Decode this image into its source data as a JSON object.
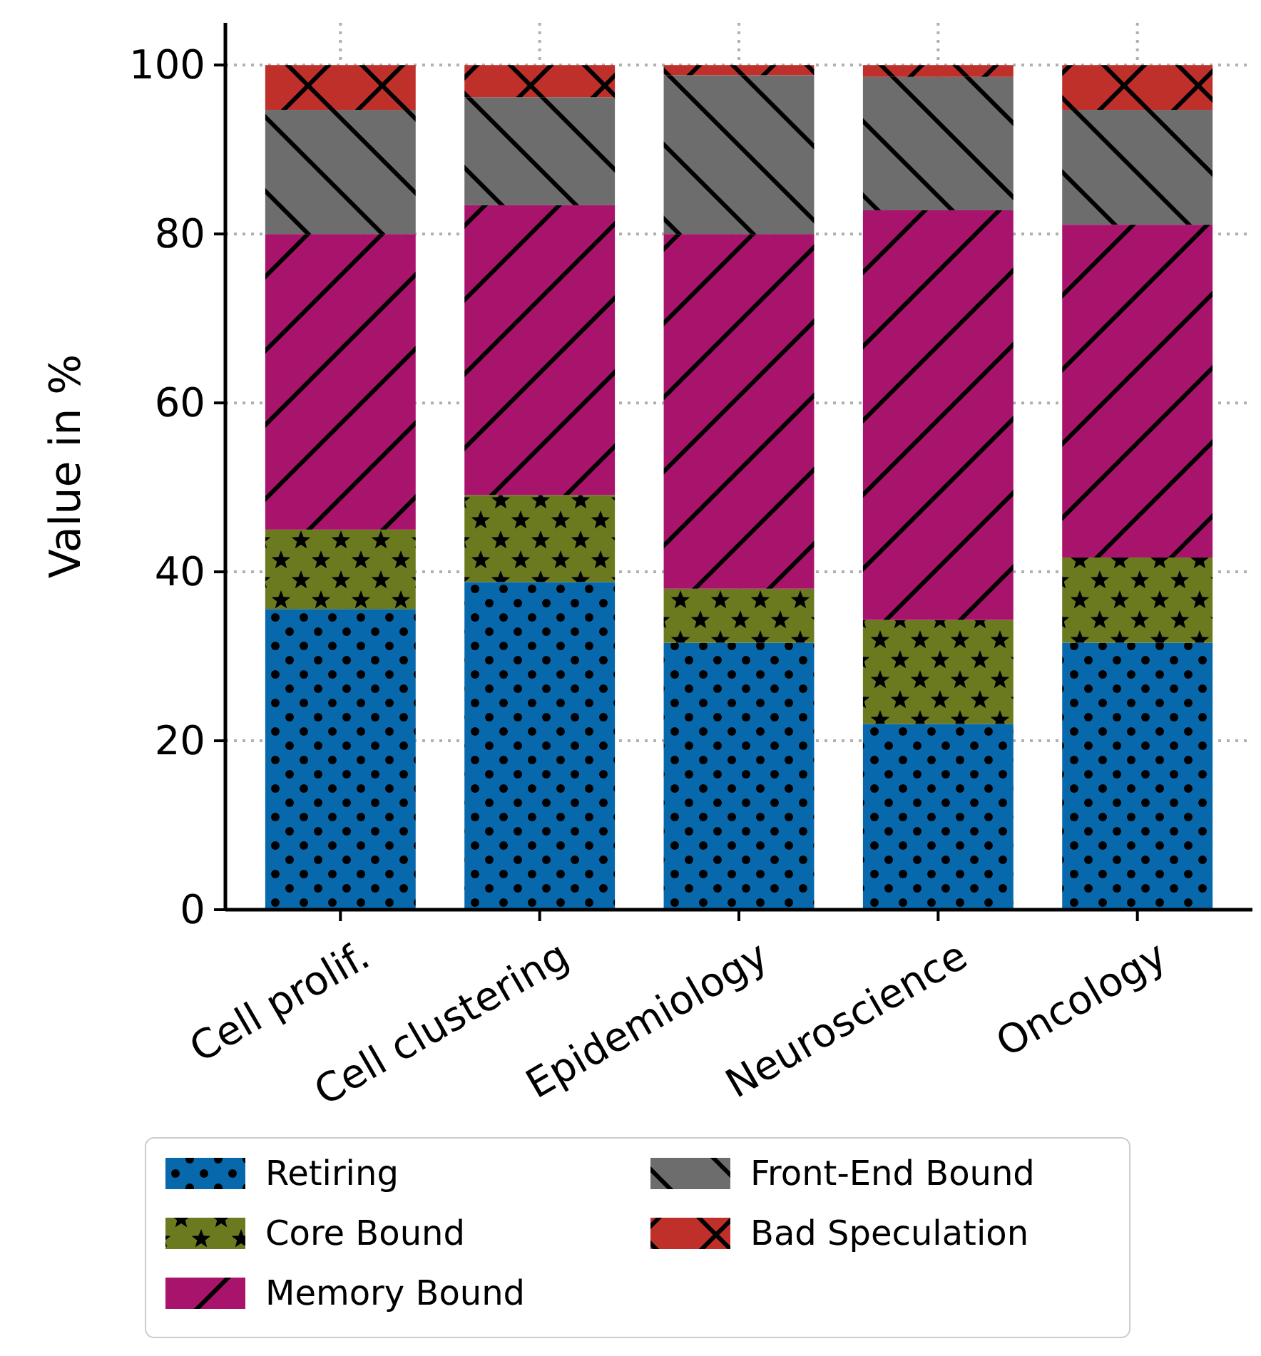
{
  "chart_data": {
    "type": "bar",
    "stacked": true,
    "ylabel": "Value in %",
    "categories": [
      "Cell prolif.",
      "Cell clustering",
      "Epidemiology",
      "Neuroscience",
      "Oncology"
    ],
    "series": [
      {
        "name": "Retiring",
        "color": "#0868ac",
        "values": [
          35.6,
          38.8,
          31.6,
          22.0,
          31.6
        ]
      },
      {
        "name": "Core Bound",
        "color": "#6b7a1e",
        "values": [
          9.4,
          10.3,
          6.4,
          12.3,
          10.1
        ]
      },
      {
        "name": "Memory Bound",
        "color": "#a8146c",
        "values": [
          35.0,
          34.3,
          42.0,
          48.5,
          39.4
        ]
      },
      {
        "name": "Front-End Bound",
        "color": "#6e6d6e",
        "values": [
          14.7,
          12.8,
          18.8,
          15.8,
          13.6
        ]
      },
      {
        "name": "Bad Speculation",
        "color": "#c0302b",
        "values": [
          5.3,
          3.8,
          1.2,
          1.4,
          5.3
        ]
      }
    ],
    "ylim": [
      0,
      105
    ],
    "yticks": [
      0,
      20,
      40,
      60,
      80,
      100
    ],
    "grid": true,
    "legend": "bottom"
  }
}
